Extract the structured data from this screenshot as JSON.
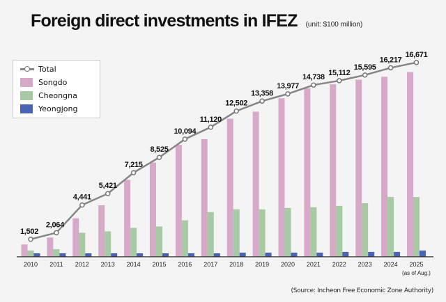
{
  "chart_data": {
    "type": "bar",
    "title": "Foreign direct investments in IFEZ",
    "subtitle": "(unit: $100 million)",
    "source": "(Source: Incheon Free Economic Zone Authority)",
    "categories": [
      "2010",
      "2011",
      "2012",
      "2013",
      "2014",
      "2015",
      "2016",
      "2017",
      "2018",
      "2019",
      "2020",
      "2021",
      "2022",
      "2023",
      "2024",
      "2025"
    ],
    "category_note": "(as of Aug.)",
    "series": [
      {
        "name": "Total",
        "type": "line",
        "color": "#858585",
        "values": [
          1502,
          2064,
          4441,
          5421,
          7215,
          8525,
          10094,
          11120,
          12502,
          13358,
          13977,
          14738,
          15112,
          15595,
          16217,
          16671
        ]
      },
      {
        "name": "Songdo",
        "type": "bar",
        "color": "#d6a9c8",
        "values": [
          1060,
          1650,
          3300,
          4420,
          6600,
          8080,
          9600,
          10100,
          11850,
          12450,
          13600,
          14450,
          14800,
          15200,
          15450,
          15850
        ]
      },
      {
        "name": "Cheongna",
        "type": "bar",
        "color": "#a7c9a4",
        "values": [
          530,
          650,
          2060,
          2180,
          2480,
          2600,
          3130,
          3830,
          4070,
          4070,
          4190,
          4250,
          4370,
          4600,
          5130,
          5130
        ]
      },
      {
        "name": "Yeongjong",
        "type": "bar",
        "color": "#4a64b3",
        "values": [
          300,
          300,
          300,
          300,
          300,
          300,
          300,
          300,
          350,
          350,
          350,
          350,
          420,
          420,
          420,
          530
        ]
      }
    ],
    "ylim": [
      0,
      17500
    ],
    "legend_position": "top-left",
    "grid": false
  }
}
